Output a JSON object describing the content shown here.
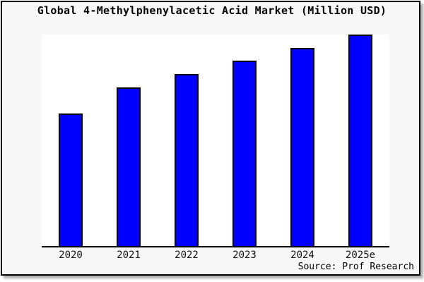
{
  "window": {
    "background_color": "#f7f7f7",
    "plot_background_color": "#ffffff",
    "frame_border_color": "#000000"
  },
  "chart_data": {
    "type": "bar",
    "title": "Global 4-Methylphenylacetic Acid Market (Million USD)",
    "categories": [
      "2020",
      "2021",
      "2022",
      "2023",
      "2024",
      "2025e"
    ],
    "values_pct_of_max": [
      62.7,
      75.0,
      81.3,
      87.6,
      93.7,
      100.0
    ],
    "value_scale_note": "no y-axis ticks or value labels shown; values are bar heights relative to the tallest bar (2025e = 100)",
    "bar_color": "#0000ff",
    "bar_outline_color": "#000000",
    "xlabel": "",
    "ylabel": "",
    "grid": false,
    "legend_position": "none"
  },
  "source": {
    "text": "Source: Prof Research"
  }
}
